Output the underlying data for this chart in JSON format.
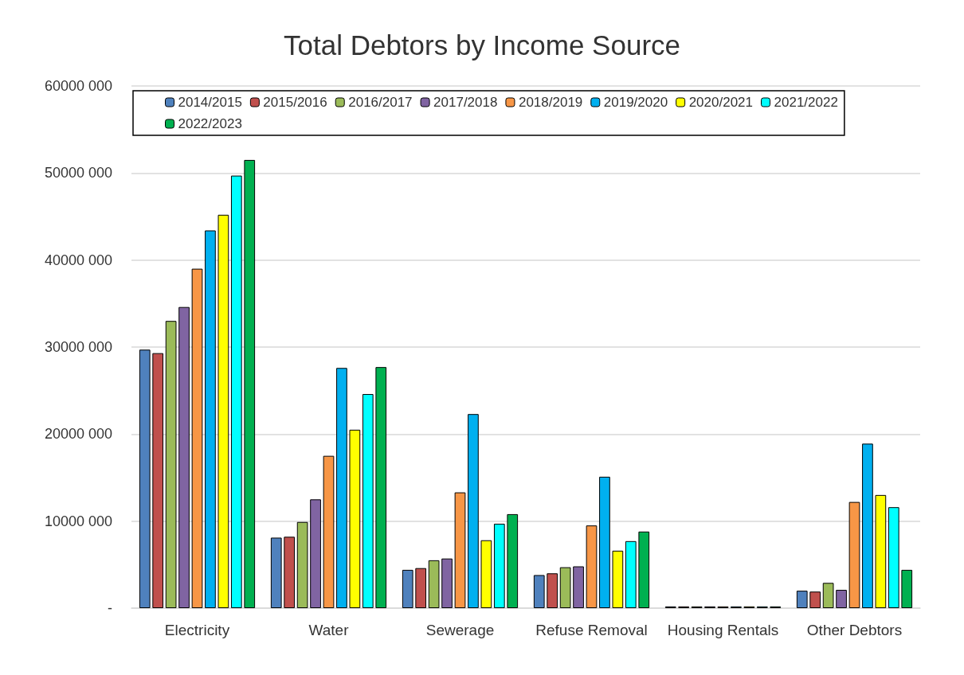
{
  "chart_data": {
    "type": "bar",
    "title": "Total Debtors by Income Source",
    "categories": [
      "Electricity",
      "Water",
      "Sewerage",
      "Refuse Removal",
      "Housing Rentals",
      "Other Debtors"
    ],
    "series": [
      {
        "name": "2014/2015",
        "color": "#4f81bd",
        "values": [
          29700000,
          8100000,
          4400000,
          3800000,
          200000,
          2000000
        ]
      },
      {
        "name": "2015/2016",
        "color": "#c0504d",
        "values": [
          29300000,
          8200000,
          4600000,
          4000000,
          200000,
          1900000
        ]
      },
      {
        "name": "2016/2017",
        "color": "#9bbb59",
        "values": [
          33000000,
          9900000,
          5500000,
          4700000,
          200000,
          2900000
        ]
      },
      {
        "name": "2017/2018",
        "color": "#8064a2",
        "values": [
          34600000,
          12500000,
          5700000,
          4800000,
          200000,
          2100000
        ]
      },
      {
        "name": "2018/2019",
        "color": "#f79646",
        "values": [
          39000000,
          17500000,
          13300000,
          9500000,
          200000,
          12200000
        ]
      },
      {
        "name": "2019/2020",
        "color": "#00b0f0",
        "values": [
          43400000,
          27600000,
          22300000,
          15100000,
          200000,
          18900000
        ]
      },
      {
        "name": "2020/2021",
        "color": "#ffff00",
        "values": [
          45200000,
          20500000,
          7800000,
          6600000,
          200000,
          13000000
        ]
      },
      {
        "name": "2021/2022",
        "color": "#00ffff",
        "values": [
          49700000,
          24600000,
          9700000,
          7700000,
          200000,
          11600000
        ]
      },
      {
        "name": "2022/2023",
        "color": "#00b050",
        "values": [
          51500000,
          27700000,
          10800000,
          8800000,
          200000,
          4400000
        ]
      }
    ],
    "ylim": [
      0,
      60000000
    ],
    "yticks": [
      {
        "value": 0,
        "label": "-"
      },
      {
        "value": 10000000,
        "label": "10000 000"
      },
      {
        "value": 20000000,
        "label": "20000 000"
      },
      {
        "value": 30000000,
        "label": "30000 000"
      },
      {
        "value": 40000000,
        "label": "40000 000"
      },
      {
        "value": 50000000,
        "label": "50000 000"
      },
      {
        "value": 60000000,
        "label": "60000 000"
      }
    ],
    "grid": "y",
    "legend": "top"
  }
}
